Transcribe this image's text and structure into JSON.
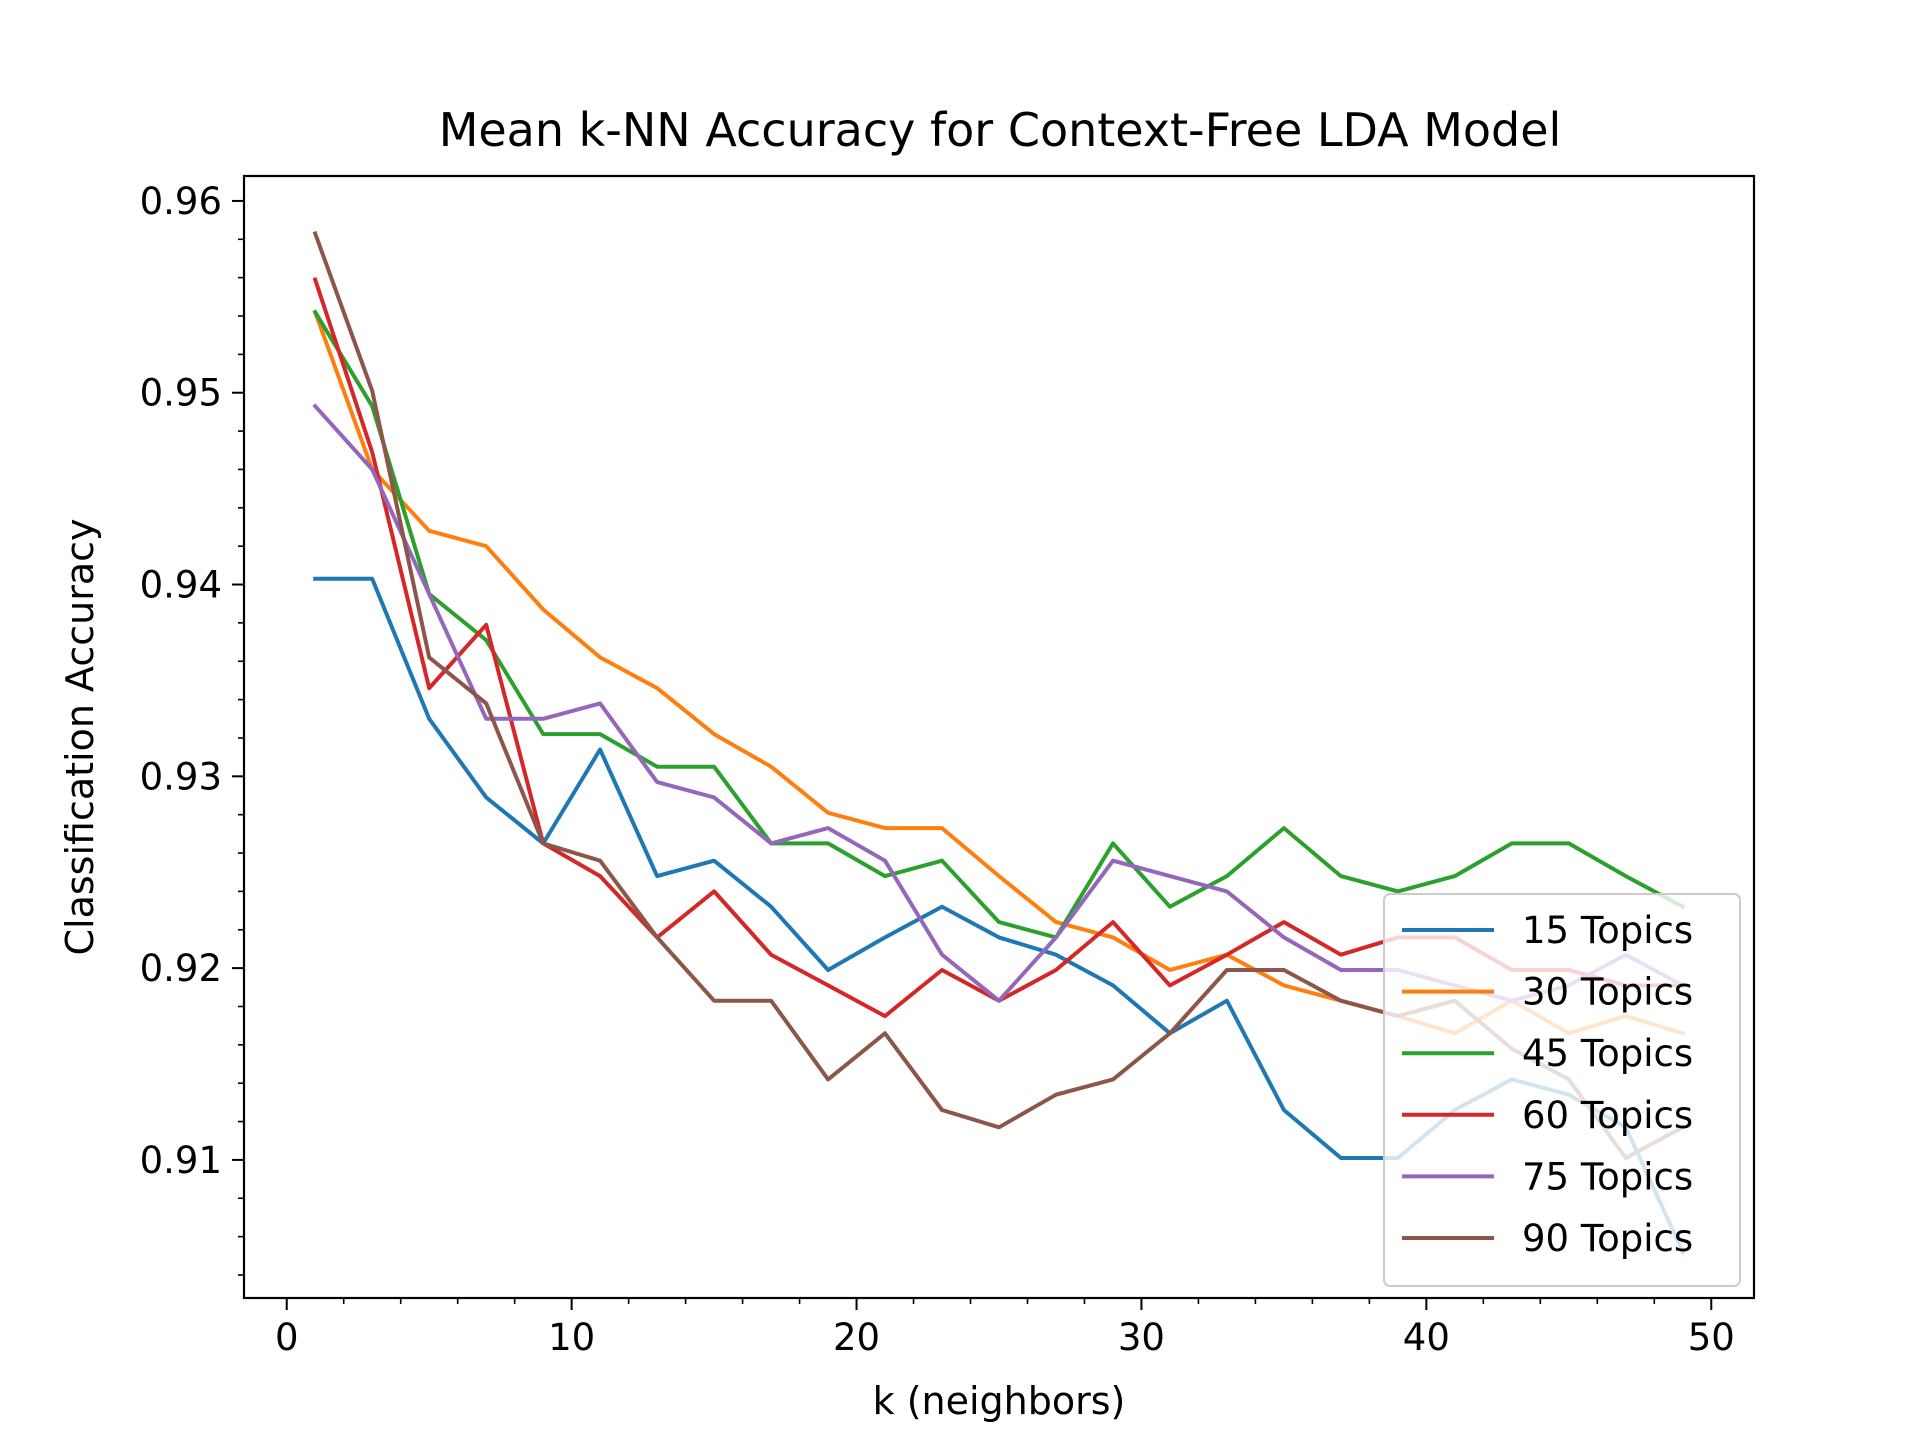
{
  "chart_data": {
    "type": "line",
    "title": "Mean k-NN Accuracy for Context-Free LDA Model",
    "xlabel": "k (neighbors)",
    "ylabel": "Classification Accuracy",
    "xlim": [
      -1.5,
      51.5
    ],
    "ylim": [
      0.9028,
      0.9613
    ],
    "xticks": [
      0,
      10,
      20,
      30,
      40,
      50
    ],
    "xtick_labels": [
      "0",
      "10",
      "20",
      "30",
      "40",
      "50"
    ],
    "yticks": [
      0.91,
      0.92,
      0.93,
      0.94,
      0.95,
      0.96
    ],
    "ytick_labels": [
      "0.91",
      "0.92",
      "0.93",
      "0.94",
      "0.95",
      "0.96"
    ],
    "legend_position": "lower right",
    "grid": false,
    "x": [
      1,
      3,
      5,
      7,
      9,
      11,
      13,
      15,
      17,
      19,
      21,
      23,
      25,
      27,
      29,
      31,
      33,
      35,
      37,
      39,
      41,
      43,
      45,
      47,
      49
    ],
    "series": [
      {
        "name": "15 Topics",
        "color": "#1f77b4",
        "values": [
          0.9403,
          0.9403,
          0.933,
          0.9289,
          0.9265,
          0.9314,
          0.9248,
          0.9256,
          0.9232,
          0.9199,
          0.9216,
          0.9232,
          0.9216,
          0.9207,
          0.9191,
          0.9166,
          0.9183,
          0.9126,
          0.9101,
          0.9101,
          0.9126,
          0.9142,
          0.9134,
          0.9117,
          0.9052
        ]
      },
      {
        "name": "30 Topics",
        "color": "#ff7f0e",
        "values": [
          0.9542,
          0.946,
          0.9428,
          0.942,
          0.9387,
          0.9362,
          0.9346,
          0.9322,
          0.9305,
          0.9281,
          0.9273,
          0.9273,
          0.9248,
          0.9224,
          0.9216,
          0.9199,
          0.9207,
          0.9191,
          0.9183,
          0.9175,
          0.9166,
          0.9183,
          0.9166,
          0.9175,
          0.9166
        ]
      },
      {
        "name": "45 Topics",
        "color": "#2ca02c",
        "values": [
          0.9542,
          0.9493,
          0.9395,
          0.9371,
          0.9322,
          0.9322,
          0.9305,
          0.9305,
          0.9265,
          0.9265,
          0.9248,
          0.9256,
          0.9224,
          0.9216,
          0.9265,
          0.9232,
          0.9248,
          0.9273,
          0.9248,
          0.924,
          0.9248,
          0.9265,
          0.9265,
          0.9248,
          0.9232
        ]
      },
      {
        "name": "60 Topics",
        "color": "#d62728",
        "values": [
          0.9559,
          0.9469,
          0.9346,
          0.9379,
          0.9265,
          0.9248,
          0.9216,
          0.924,
          0.9207,
          0.9191,
          0.9175,
          0.9199,
          0.9183,
          0.9199,
          0.9224,
          0.9191,
          0.9207,
          0.9224,
          0.9207,
          0.9216,
          0.9216,
          0.9199,
          0.9199,
          0.9191,
          0.9191
        ]
      },
      {
        "name": "75 Topics",
        "color": "#9467bd",
        "values": [
          0.9493,
          0.946,
          0.9395,
          0.933,
          0.933,
          0.9338,
          0.9297,
          0.9289,
          0.9265,
          0.9273,
          0.9256,
          0.9207,
          0.9183,
          0.9216,
          0.9256,
          0.9248,
          0.924,
          0.9216,
          0.9199,
          0.9199,
          0.9191,
          0.9183,
          0.9191,
          0.9207,
          0.9191
        ]
      },
      {
        "name": "90 Topics",
        "color": "#8c564b",
        "values": [
          0.9583,
          0.9501,
          0.9362,
          0.9338,
          0.9265,
          0.9256,
          0.9216,
          0.9183,
          0.9183,
          0.9142,
          0.9166,
          0.9126,
          0.9117,
          0.9134,
          0.9142,
          0.9166,
          0.9199,
          0.9199,
          0.9183,
          0.9175,
          0.9183,
          0.9158,
          0.9142,
          0.9101,
          0.9117
        ]
      }
    ]
  }
}
